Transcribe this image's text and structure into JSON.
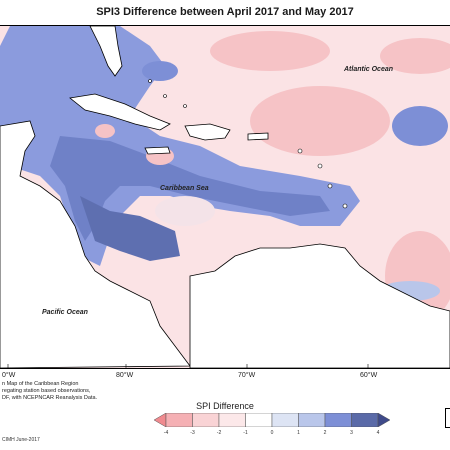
{
  "title": "SPI3 Difference between April 2017 and May 2017",
  "labels": {
    "atlantic": "Atlantic Ocean",
    "caribbean": "Caribbean Sea",
    "pacific": "Pacific Ocean"
  },
  "longitudes": [
    "0°W",
    "80°W",
    "70°W",
    "60°W"
  ],
  "credit": [
    "n Map of the Caribbean Region",
    "regating station based observations,",
    "DF, with NCEPNCAR Reanalysis Data."
  ],
  "cimh": "CIMH June-2017",
  "legend": {
    "title": "SPI Difference",
    "ticks": [
      "-4",
      "-3",
      "-2",
      "-1",
      "0",
      "1",
      "2",
      "3",
      "4"
    ],
    "colors": [
      "#f08a8f",
      "#f5b0b4",
      "#f9d3d5",
      "#fce8e9",
      "#ffffff",
      "#dde4f4",
      "#b9c6ea",
      "#7d8fd6",
      "#5a6aa8",
      "#3f4a8a"
    ]
  }
}
